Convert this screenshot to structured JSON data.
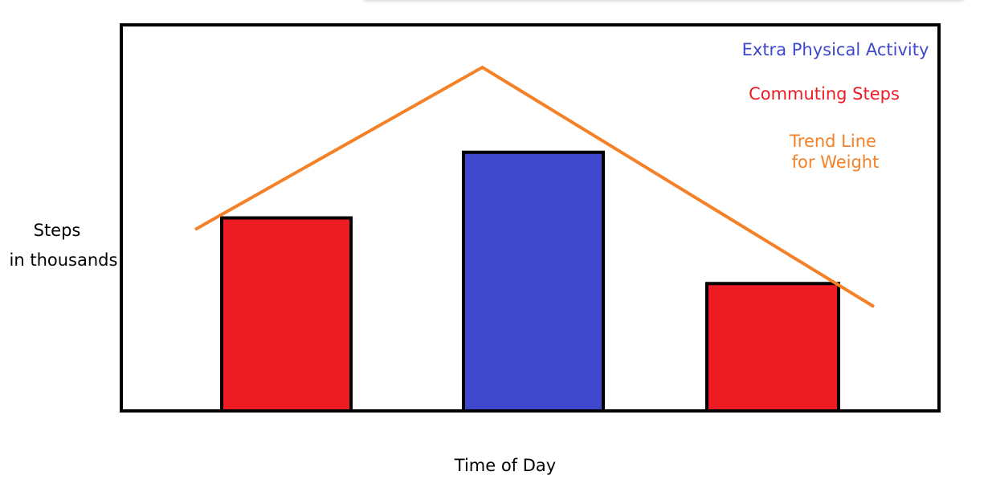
{
  "chart_data": {
    "type": "bar",
    "xlabel": "Time of Day",
    "ylabel": [
      "Steps",
      "in thousands"
    ],
    "ylim": [
      0,
      10
    ],
    "bars": [
      {
        "series": "Commuting Steps",
        "value": 5.0,
        "color": "#ed1c24"
      },
      {
        "series": "Extra Physical Activity",
        "value": 6.7,
        "color": "#3f48cc"
      },
      {
        "series": "Commuting Steps",
        "value": 3.3,
        "color": "#ed1c24"
      }
    ],
    "trend_line": {
      "series": "Trend Line for Weight",
      "color": "#f58025",
      "points": [
        {
          "x": 0.0,
          "y": 4.7
        },
        {
          "x": 1.1,
          "y": 8.9
        },
        {
          "x": 2.6,
          "y": 2.7
        }
      ]
    },
    "legend": {
      "placement": "top-right",
      "entries": [
        {
          "text": [
            "Extra Physical Activity"
          ],
          "color": "#3f48cc"
        },
        {
          "text": [
            "Commuting Steps"
          ],
          "color": "#ed1c24"
        },
        {
          "text": [
            "Trend Line",
            "for Weight"
          ],
          "color": "#f58025"
        }
      ]
    },
    "grid": false
  }
}
